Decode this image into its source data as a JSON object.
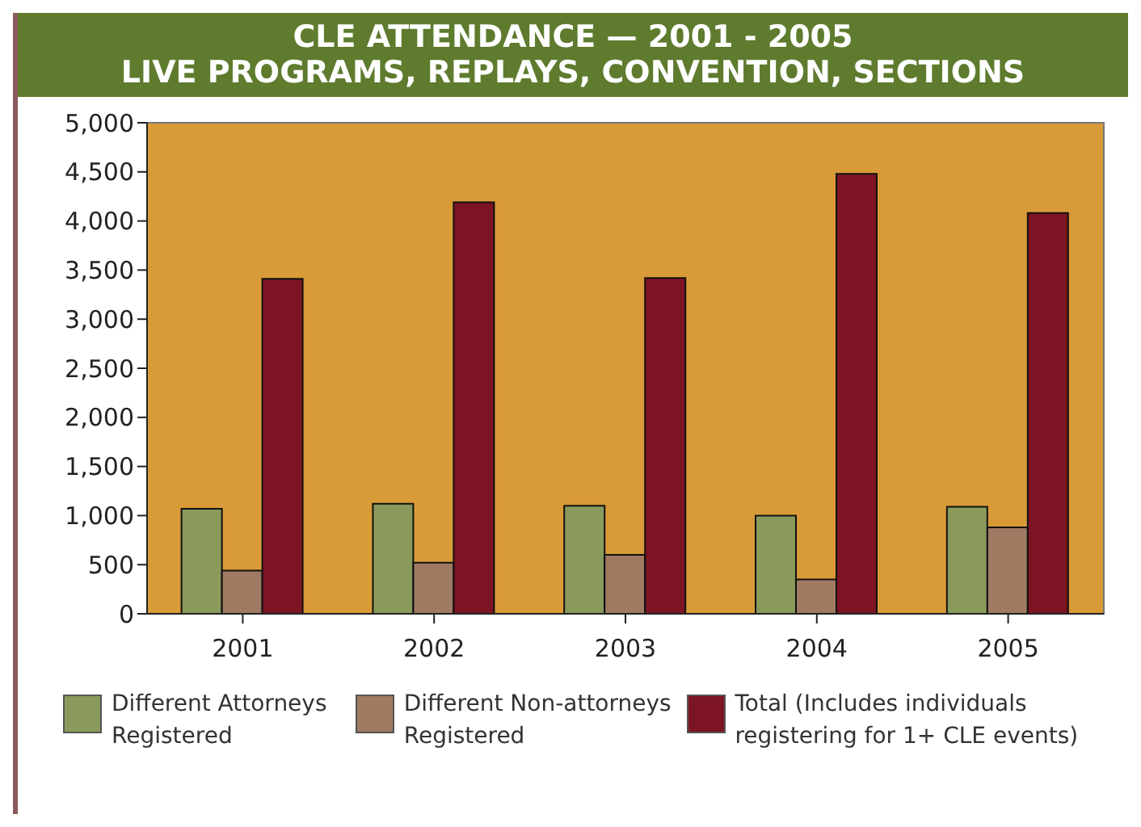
{
  "chart_data": {
    "type": "bar",
    "title": "CLE ATTENDANCE — 2001 - 2005",
    "subtitle": "LIVE PROGRAMS, REPLAYS, CONVENTION, SECTIONS",
    "categories": [
      "2001",
      "2002",
      "2003",
      "2004",
      "2005"
    ],
    "series": [
      {
        "name": "Different Attorneys Registered",
        "color": "#8a9a5b",
        "values": [
          1070,
          1120,
          1100,
          1000,
          1090
        ]
      },
      {
        "name": "Different Non-attorneys Registered",
        "color": "#a07a62",
        "values": [
          440,
          520,
          600,
          350,
          880
        ]
      },
      {
        "name": "Total (Includes individuals registering for 1+ CLE events)",
        "color": "#7d1424",
        "values": [
          3410,
          4190,
          3420,
          4480,
          4080
        ]
      }
    ],
    "ylim": [
      0,
      5000
    ],
    "yticks": [
      0,
      {
        "value": 500,
        "label": "500"
      },
      {
        "value": 1000,
        "label": "1,000"
      },
      {
        "value": 1500,
        "label": "1,500"
      },
      {
        "value": 2000,
        "label": "2,000"
      },
      {
        "value": 2500,
        "label": "2,500"
      },
      {
        "value": 3000,
        "label": "3,000"
      },
      {
        "value": 3500,
        "label": "3,500"
      },
      {
        "value": 4000,
        "label": "4,000"
      },
      {
        "value": 4500,
        "label": "4,500"
      },
      {
        "value": 5000,
        "label": "5,000"
      }
    ],
    "legend": "bottom"
  }
}
